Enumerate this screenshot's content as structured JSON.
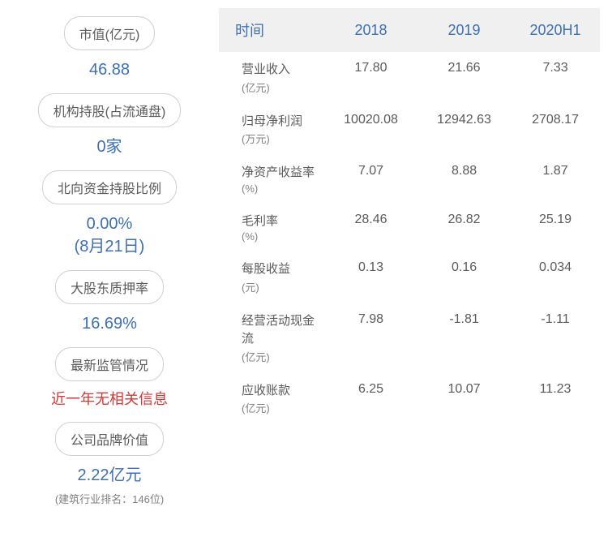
{
  "left_metrics": [
    {
      "label": "市值(亿元)",
      "value": "46.88",
      "value_color": "#3d6fb5"
    },
    {
      "label": "机构持股(占流通盘)",
      "value": "0家",
      "value_color": "#3d6fb5"
    },
    {
      "label": "北向资金持股比例",
      "value": "0.00%\n(8月21日)",
      "value_color": "#3d6fb5"
    },
    {
      "label": "大股东质押率",
      "value": "16.69%",
      "value_color": "#3d6fb5"
    },
    {
      "label": "最新监管情况",
      "value": "近一年无相关信息",
      "value_color": "#d23838"
    },
    {
      "label": "公司品牌价值",
      "value": "2.22亿元",
      "value_color": "#3d6fb5",
      "subtext": "(建筑行业排名：146位)"
    }
  ],
  "table": {
    "header_bg": "#f0f0f0",
    "header_color": "#3d6fb5",
    "text_color": "#5a5a5a",
    "unit_color": "#808080",
    "columns": [
      "时间",
      "2018",
      "2019",
      "2020H1"
    ],
    "rows": [
      {
        "label": "营业收入",
        "unit": "(亿元)",
        "values": [
          "17.80",
          "21.66",
          "7.33"
        ]
      },
      {
        "label": "归母净利润",
        "unit": "(万元)",
        "values": [
          "10020.08",
          "12942.63",
          "2708.17"
        ]
      },
      {
        "label": "净资产收益率",
        "unit": "(%)",
        "values": [
          "7.07",
          "8.88",
          "1.87"
        ]
      },
      {
        "label": "毛利率",
        "unit": "(%)",
        "values": [
          "28.46",
          "26.82",
          "25.19"
        ]
      },
      {
        "label": "每股收益",
        "unit": "(元)",
        "values": [
          "0.13",
          "0.16",
          "0.034"
        ]
      },
      {
        "label": "经营活动现金流",
        "unit": "(亿元)",
        "values": [
          "7.98",
          "-1.81",
          "-1.11"
        ]
      },
      {
        "label": "应收账款",
        "unit": "(亿元)",
        "values": [
          "6.25",
          "10.07",
          "11.23"
        ]
      }
    ]
  }
}
